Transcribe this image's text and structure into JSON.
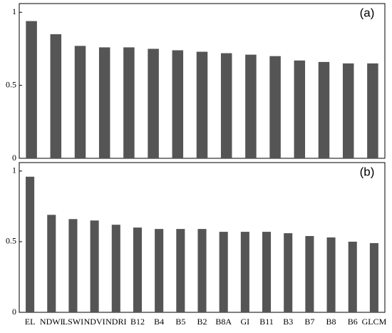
{
  "chart_data": [
    {
      "type": "bar",
      "annotation": "(a)",
      "categories": [
        null,
        null,
        null,
        null,
        null,
        null,
        null,
        null,
        null,
        null,
        null,
        null,
        null,
        null,
        null
      ],
      "values": [
        0.94,
        0.85,
        0.77,
        0.76,
        0.76,
        0.75,
        0.74,
        0.73,
        0.72,
        0.71,
        0.7,
        0.67,
        0.66,
        0.65,
        0.65
      ],
      "color": "#555555",
      "ylim": [
        0,
        1.06
      ],
      "yticks": [
        0,
        0.5,
        1
      ]
    },
    {
      "type": "bar",
      "annotation": "(b)",
      "categories": [
        "EL",
        "NDWI",
        "LSWI",
        "NDVI",
        "NDRI",
        "B12",
        "B4",
        "B5",
        "B2",
        "B8A",
        "GI",
        "B11",
        "B3",
        "B7",
        "B8",
        "B6",
        "GLCM"
      ],
      "values": [
        0.96,
        0.69,
        0.66,
        0.65,
        0.62,
        0.6,
        0.59,
        0.59,
        0.59,
        0.57,
        0.57,
        0.57,
        0.56,
        0.54,
        0.53,
        0.5,
        0.49
      ],
      "color": "#555555",
      "ylim": [
        0,
        1.06
      ],
      "yticks": [
        0,
        0.5,
        1
      ]
    }
  ]
}
